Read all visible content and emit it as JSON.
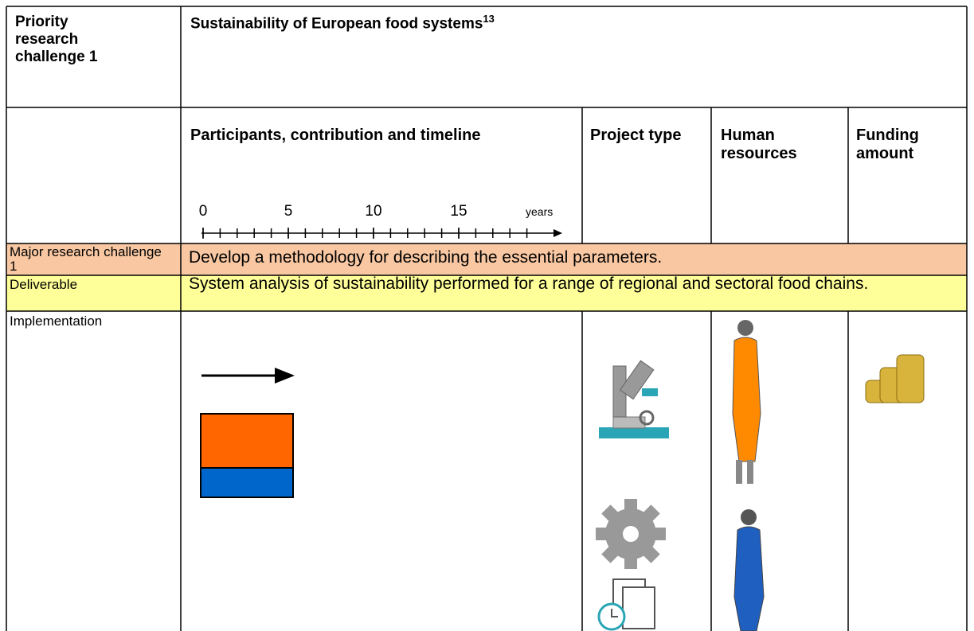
{
  "header": {
    "label": "Priority research challenge 1",
    "title": "Sustainability of European food systems",
    "footnote": "13"
  },
  "columns": {
    "timeline": "Participants, contribution and timeline",
    "project_type": "Project type",
    "human_resources": "Human resources",
    "funding": "Funding amount"
  },
  "timeline": {
    "ticks": [
      0,
      5,
      10,
      15
    ],
    "unit": "years"
  },
  "rows": [
    {
      "label": "Major research challenge 1",
      "text": "Develop a methodology for describing the essential parameters."
    },
    {
      "label": "Deliverable",
      "text": "System analysis of sustainability performed for a range of regional and sectoral food chains."
    },
    {
      "label": "Implementation"
    }
  ]
}
